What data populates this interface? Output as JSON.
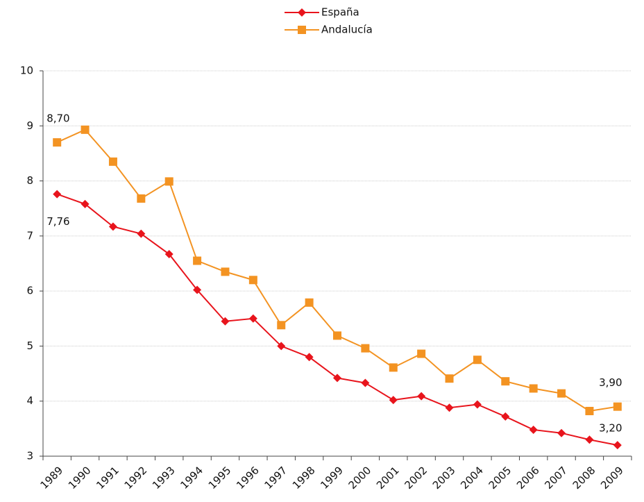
{
  "chart_data": {
    "type": "line",
    "categories": [
      "1989",
      "1990",
      "1991",
      "1992",
      "1993",
      "1994",
      "1995",
      "1996",
      "1997",
      "1998",
      "1999",
      "2000",
      "2001",
      "2002",
      "2003",
      "2004",
      "2005",
      "2006",
      "2007",
      "2008",
      "2009"
    ],
    "series": [
      {
        "name": "España",
        "color": "#e8141c",
        "marker": "diamond",
        "values": [
          7.76,
          7.58,
          7.17,
          7.04,
          6.67,
          6.02,
          5.45,
          5.5,
          5.0,
          4.8,
          4.42,
          4.33,
          4.02,
          4.09,
          3.88,
          3.94,
          3.72,
          3.48,
          3.42,
          3.3,
          3.2
        ],
        "value_labels": [
          "7,76",
          null,
          null,
          null,
          null,
          null,
          null,
          null,
          null,
          null,
          null,
          null,
          null,
          null,
          null,
          null,
          null,
          null,
          null,
          null,
          "3,20"
        ]
      },
      {
        "name": "Andalucía",
        "color": "#f39322",
        "marker": "square",
        "values": [
          8.7,
          8.93,
          8.35,
          7.68,
          7.99,
          6.55,
          6.35,
          6.2,
          5.38,
          5.79,
          5.19,
          4.96,
          4.61,
          4.86,
          4.41,
          4.75,
          4.36,
          4.23,
          4.14,
          3.82,
          3.9
        ],
        "value_labels": [
          "8,70",
          null,
          null,
          null,
          null,
          null,
          null,
          null,
          null,
          null,
          null,
          null,
          null,
          null,
          null,
          null,
          null,
          null,
          null,
          null,
          "3,90"
        ]
      }
    ],
    "ylim": [
      3,
      10
    ],
    "yticks": [
      3,
      4,
      5,
      6,
      7,
      8,
      9,
      10
    ],
    "grid": true,
    "legend": "top"
  }
}
